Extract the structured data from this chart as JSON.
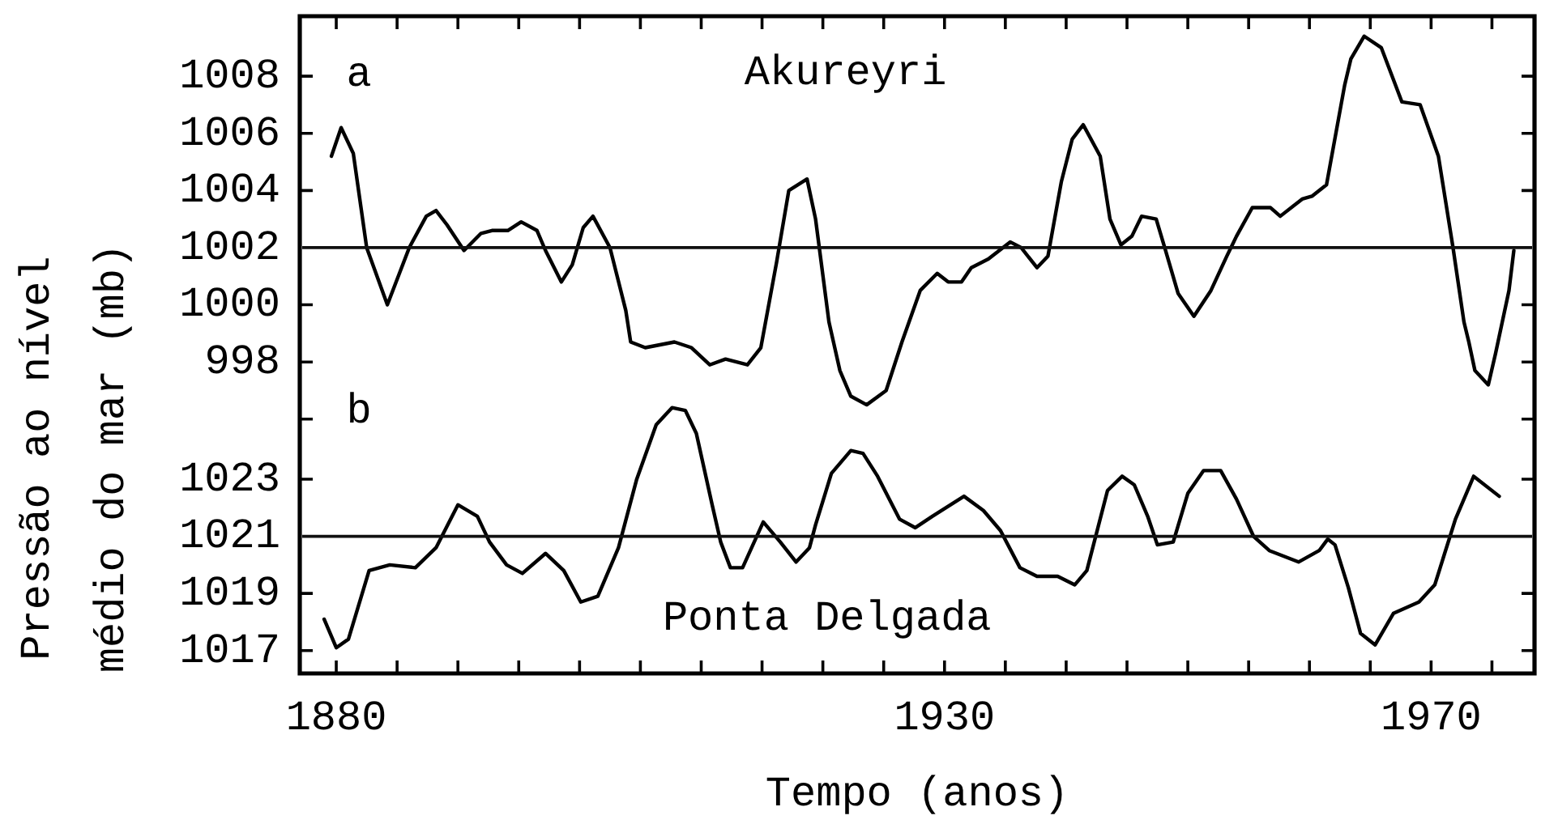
{
  "chart_data": {
    "type": "line",
    "xlabel": "Tempo (anos)",
    "y2label": "Pressão ao nível médio do mar (mb)",
    "annotations": [
      "a",
      "b"
    ],
    "xlim": [
      1877,
      1978.5
    ],
    "xticks": [
      1880,
      {
        "value": 1885,
        "label": null
      },
      {
        "value": 1890,
        "label": null
      },
      {
        "value": 1895,
        "label": null
      },
      {
        "value": 1900,
        "label": null
      },
      {
        "value": 1905,
        "label": null
      },
      {
        "value": 1910,
        "label": null
      },
      {
        "value": 1915,
        "label": null
      },
      {
        "value": 1920,
        "label": null
      },
      {
        "value": 1925,
        "label": null
      },
      1930,
      {
        "value": 1935,
        "label": null
      },
      {
        "value": 1940,
        "label": null
      },
      {
        "value": 1945,
        "label": null
      },
      {
        "value": 1950,
        "label": null
      },
      {
        "value": 1955,
        "label": null
      },
      {
        "value": 1960,
        "label": null
      },
      {
        "value": 1965,
        "label": null
      },
      1970,
      {
        "value": 1975,
        "label": null
      }
    ],
    "ylim": [
      987.1,
      1010.1
    ],
    "yticks": [
      {
        "value": 996,
        "label": null
      },
      998,
      1000,
      1004,
      1006,
      1008
    ],
    "y2lim": [
      1016.2,
      1039.2
    ],
    "y2ticks": [
      1017,
      1019,
      1023
    ],
    "ref_lines": [
      {
        "axis": "y",
        "value": 1002,
        "label": "1002",
        "color": "#111111"
      },
      {
        "axis": "y2",
        "value": 1021,
        "label": "1021",
        "color": "#111111"
      }
    ],
    "marker": "none",
    "line_style": "solid",
    "series": [
      {
        "name": "Akureyri",
        "color": "#000000",
        "axis": "y",
        "x": [
          1879.6,
          1880.4,
          1881.4,
          1882.5,
          1884.2,
          1886.0,
          1887.4,
          1888.2,
          1889.1,
          1890.5,
          1891.9,
          1892.8,
          1894.1,
          1895.2,
          1896.5,
          1897.2,
          1898.5,
          1899.4,
          1900.3,
          1901.1,
          1902.5,
          1903.8,
          1904.2,
          1905.4,
          1907.8,
          1909.2,
          1910.7,
          1912.0,
          1913.8,
          1914.9,
          1916.2,
          1917.2,
          1918.7,
          1919.4,
          1920.5,
          1921.4,
          1922.3,
          1923.6,
          1925.2,
          1926.5,
          1928.0,
          1929.4,
          1930.3,
          1931.4,
          1932.2,
          1933.6,
          1934.5,
          1935.4,
          1936.3,
          1937.6,
          1938.5,
          1939.6,
          1940.5,
          1941.4,
          1942.8,
          1943.6,
          1944.5,
          1945.4,
          1946.2,
          1947.4,
          1948.1,
          1949.2,
          1950.5,
          1951.9,
          1953.2,
          1954.0,
          1955.3,
          1956.8,
          1957.6,
          1959.4,
          1960.2,
          1961.4,
          1962.9,
          1963.4,
          1964.5,
          1965.9,
          1967.6,
          1969.1,
          1970.6,
          1971.8,
          1972.7,
          1973.1,
          1973.6,
          1974.7,
          1975.3,
          1976.4,
          1976.8
        ],
        "values": [
          1005.2,
          1006.2,
          1005.3,
          1002.0,
          1000.0,
          1002.0,
          1003.1,
          1003.3,
          1002.8,
          1001.9,
          1002.5,
          1002.6,
          1002.6,
          1002.9,
          1002.6,
          1001.9,
          1000.8,
          1001.4,
          1002.7,
          1003.1,
          1002.0,
          999.8,
          998.7,
          998.5,
          998.7,
          998.5,
          997.9,
          998.1,
          997.9,
          998.5,
          1001.5,
          1004.0,
          1004.4,
          1003.0,
          999.4,
          997.7,
          996.8,
          996.5,
          997.0,
          998.7,
          1000.5,
          1001.1,
          1000.8,
          1000.8,
          1001.3,
          1001.6,
          1001.9,
          1002.2,
          1002.0,
          1001.3,
          1001.7,
          1004.3,
          1005.8,
          1006.3,
          1005.2,
          1003.0,
          1002.1,
          1002.4,
          1003.1,
          1003.0,
          1002.0,
          1000.4,
          999.6,
          1000.5,
          1001.7,
          1002.4,
          1003.4,
          1003.4,
          1003.1,
          1003.7,
          1003.8,
          1004.2,
          1007.7,
          1008.6,
          1009.4,
          1009.0,
          1007.1,
          1007.0,
          1005.2,
          1002.0,
          999.4,
          998.7,
          997.7,
          997.2,
          998.3,
          1000.5,
          1001.9
        ]
      },
      {
        "name": "Ponta Delgada",
        "color": "#000000",
        "axis": "y2",
        "x": [
          1879.0,
          1880.0,
          1881.0,
          1882.7,
          1884.4,
          1886.5,
          1888.2,
          1890.0,
          1891.6,
          1892.6,
          1894.0,
          1895.3,
          1897.2,
          1898.7,
          1900.1,
          1901.5,
          1903.2,
          1904.7,
          1906.3,
          1907.6,
          1908.7,
          1909.6,
          1910.9,
          1911.6,
          1912.4,
          1913.4,
          1915.1,
          1916.5,
          1917.8,
          1918.9,
          1919.4,
          1920.7,
          1922.3,
          1923.3,
          1924.5,
          1926.3,
          1927.6,
          1929.0,
          1931.6,
          1933.2,
          1934.6,
          1936.2,
          1937.6,
          1939.3,
          1940.7,
          1941.7,
          1943.4,
          1944.6,
          1945.6,
          1946.7,
          1947.5,
          1948.8,
          1950.0,
          1951.3,
          1952.7,
          1954.0,
          1955.4,
          1956.7,
          1959.1,
          1960.8,
          1961.5,
          1962.1,
          1963.2,
          1964.2,
          1965.4,
          1966.9,
          1969.0,
          1970.3,
          1972.0,
          1973.5,
          1975.6
        ],
        "values": [
          1018.1,
          1017.1,
          1017.4,
          1019.8,
          1020.0,
          1019.9,
          1020.6,
          1022.1,
          1021.7,
          1020.8,
          1020.0,
          1019.7,
          1020.4,
          1019.8,
          1018.7,
          1018.9,
          1020.6,
          1023.0,
          1024.9,
          1025.5,
          1025.4,
          1024.6,
          1022.1,
          1020.8,
          1019.9,
          1019.9,
          1021.5,
          1020.8,
          1020.1,
          1020.6,
          1021.4,
          1023.2,
          1024.0,
          1023.9,
          1023.1,
          1021.6,
          1021.3,
          1021.7,
          1022.4,
          1021.9,
          1021.2,
          1019.9,
          1019.6,
          1019.6,
          1019.3,
          1019.8,
          1022.6,
          1023.1,
          1022.8,
          1021.7,
          1020.7,
          1020.8,
          1022.5,
          1023.3,
          1023.3,
          1022.3,
          1021.0,
          1020.5,
          1020.1,
          1020.5,
          1020.9,
          1020.7,
          1019.2,
          1017.6,
          1017.2,
          1018.3,
          1018.7,
          1019.3,
          1021.6,
          1023.1,
          1022.4
        ]
      }
    ]
  }
}
